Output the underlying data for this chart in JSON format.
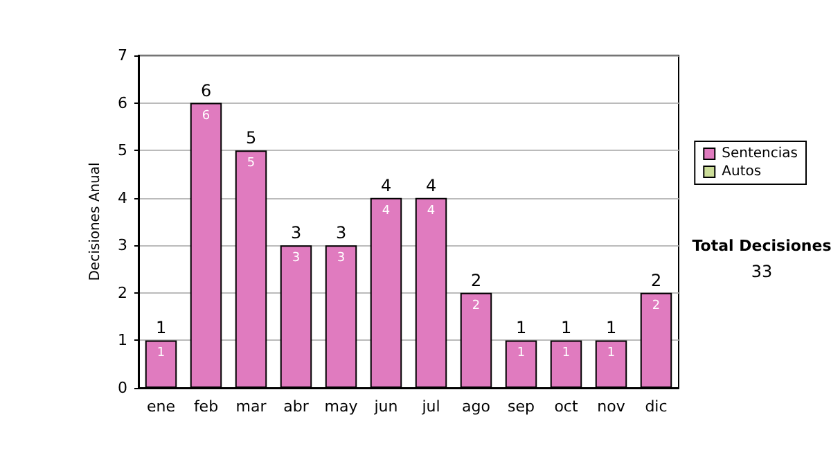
{
  "chart_data": {
    "type": "bar",
    "ylabel": "Decisiones Anual",
    "categories": [
      "ene",
      "feb",
      "mar",
      "abr",
      "may",
      "jun",
      "jul",
      "ago",
      "sep",
      "oct",
      "nov",
      "dic"
    ],
    "series": [
      {
        "name": "Sentencias",
        "color": "#e07bbf",
        "values": [
          1,
          6,
          5,
          3,
          3,
          4,
          4,
          2,
          1,
          1,
          1,
          2
        ]
      },
      {
        "name": "Autos",
        "color": "#ccdd99",
        "values": [
          null,
          null,
          null,
          null,
          null,
          null,
          null,
          null,
          null,
          null,
          null,
          null
        ]
      }
    ],
    "stacked": true,
    "data_labels": true,
    "totals": [
      "1",
      "6",
      "5",
      "3",
      "3",
      "4",
      "4",
      "2",
      "1",
      "1",
      "1",
      "2"
    ],
    "ylim": [
      0,
      7
    ],
    "yticks": [
      0,
      1,
      2,
      3,
      4,
      5,
      6,
      7
    ],
    "grid": "y",
    "legend": "right",
    "annotations": [
      "Total Decisiones",
      "33"
    ]
  }
}
